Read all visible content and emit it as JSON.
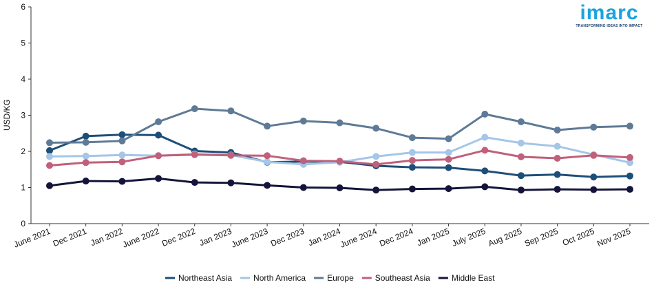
{
  "logo": {
    "word": "imarc",
    "tagline": "TRANSFORMING IDEAS INTO IMPACT"
  },
  "chart_data": {
    "type": "line",
    "title": "",
    "xlabel": "",
    "ylabel": "USD/KG",
    "ylim": [
      0,
      6
    ],
    "yticks": [
      "0",
      "1",
      "2",
      "3",
      "4",
      "5",
      "6"
    ],
    "grid": false,
    "legend": "bottom",
    "categories": [
      "June 2021",
      "Dec 2021",
      "Jan 2022",
      "June 2022",
      "Dec 2022",
      "Jan 2023",
      "June 2023",
      "Dec 2023",
      "Jan 2024",
      "June 2024",
      "Dec 2024",
      "Jan 2025",
      "July 2025",
      "Aug 2025",
      "Sep 2025",
      "Oct 2025",
      "Nov 2025"
    ],
    "series": [
      {
        "name": "Northeast Asia",
        "color": "#1d4e79",
        "values": [
          2.02,
          2.42,
          2.46,
          2.45,
          2.01,
          1.97,
          1.7,
          1.72,
          1.71,
          1.6,
          1.56,
          1.55,
          1.46,
          1.33,
          1.36,
          1.29,
          1.32
        ]
      },
      {
        "name": "North America",
        "color": "#a4c6e8",
        "values": [
          1.86,
          1.87,
          1.9,
          1.88,
          1.93,
          1.9,
          1.71,
          1.64,
          1.7,
          1.86,
          1.97,
          1.97,
          2.39,
          2.23,
          2.14,
          1.91,
          1.69
        ]
      },
      {
        "name": "Europe",
        "color": "#5f7a96",
        "values": [
          2.24,
          2.25,
          2.29,
          2.82,
          3.18,
          3.12,
          2.7,
          2.84,
          2.79,
          2.64,
          2.38,
          2.35,
          3.03,
          2.82,
          2.59,
          2.67,
          2.7
        ]
      },
      {
        "name": "Southeast Asia",
        "color": "#c0607a",
        "values": [
          1.61,
          1.69,
          1.71,
          1.88,
          1.91,
          1.89,
          1.88,
          1.74,
          1.73,
          1.64,
          1.75,
          1.78,
          2.03,
          1.85,
          1.81,
          1.89,
          1.83
        ]
      },
      {
        "name": "Middle East",
        "color": "#14143a",
        "values": [
          1.05,
          1.18,
          1.17,
          1.25,
          1.14,
          1.13,
          1.06,
          1.0,
          0.99,
          0.93,
          0.96,
          0.97,
          1.02,
          0.93,
          0.95,
          0.94,
          0.95
        ]
      }
    ]
  }
}
